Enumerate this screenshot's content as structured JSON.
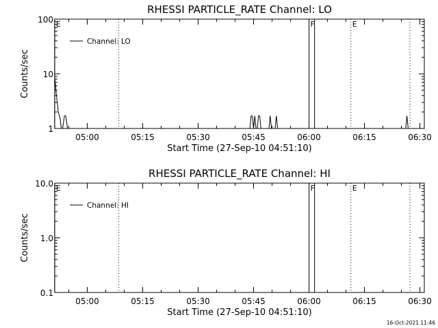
{
  "chart_data": [
    {
      "type": "line",
      "title": "RHESSI PARTICLE_RATE Channel: LO",
      "xlabel": "Start Time (27-Sep-10 04:51:10)",
      "ylabel": "Counts/sec",
      "yscale": "log",
      "ylim": [
        1,
        100
      ],
      "xlim_minutes": [
        291.2,
        391.2
      ],
      "x_ticks": [
        "05:00",
        "05:15",
        "05:30",
        "05:45",
        "06:00",
        "06:15",
        "06:30"
      ],
      "y_ticks": [
        "1",
        "10",
        "100"
      ],
      "legend": {
        "position": "top-left",
        "entries": [
          "Channel: LO"
        ]
      },
      "series": [
        {
          "name": "Channel: LO",
          "x": [
            "04:51:10",
            "04:51:40",
            "04:52:10",
            "04:52:40",
            "04:53:00",
            "04:53:20",
            "04:53:50",
            "04:54:10",
            "04:54:40",
            "04:55:00",
            "04:55:20",
            "04:55:40",
            "05:44:00",
            "05:44:20",
            "05:44:40",
            "05:45:00",
            "05:45:20",
            "05:45:40",
            "05:46:00",
            "05:46:20",
            "05:46:40",
            "05:47:00",
            "05:47:20",
            "05:49:10",
            "05:49:30",
            "05:49:50",
            "05:50:50",
            "05:51:10",
            "05:51:30",
            "06:26:10",
            "06:26:30",
            "06:26:50"
          ],
          "y": [
            9,
            4,
            2,
            1.5,
            1,
            1,
            1.7,
            1.7,
            1,
            1,
            1,
            1,
            1,
            1.7,
            1.7,
            1,
            1.7,
            1,
            1,
            1.7,
            1.7,
            1,
            1,
            1,
            1.7,
            1,
            1,
            1.7,
            1,
            1,
            1.7,
            1
          ]
        }
      ],
      "markers": [
        {
          "label": "E",
          "time": "04:51:10",
          "style": "solid"
        },
        {
          "label": "",
          "time": "05:08:30",
          "style": "dotted"
        },
        {
          "label": "F",
          "time": "06:00:00",
          "style": "solid"
        },
        {
          "label": "",
          "time": "06:01:30",
          "style": "solid"
        },
        {
          "label": "E",
          "time": "06:11:20",
          "style": "dotted"
        },
        {
          "label": "",
          "time": "06:27:20",
          "style": "dotted"
        }
      ]
    },
    {
      "type": "line",
      "title": "RHESSI PARTICLE_RATE Channel: HI",
      "xlabel": "Start Time (27-Sep-10 04:51:10)",
      "ylabel": "Counts/sec",
      "yscale": "log",
      "ylim": [
        0.1,
        10
      ],
      "xlim_minutes": [
        291.2,
        391.2
      ],
      "x_ticks": [
        "05:00",
        "05:15",
        "05:30",
        "05:45",
        "06:00",
        "06:15",
        "06:30"
      ],
      "y_ticks": [
        "0.1",
        "1.0",
        "10.0"
      ],
      "legend": {
        "position": "top-left",
        "entries": [
          "Channel: HI"
        ]
      },
      "series": [
        {
          "name": "Channel: HI",
          "x": [],
          "y": []
        }
      ],
      "markers": [
        {
          "label": "E",
          "time": "04:51:10",
          "style": "solid"
        },
        {
          "label": "",
          "time": "05:08:30",
          "style": "dotted"
        },
        {
          "label": "F",
          "time": "06:00:00",
          "style": "solid"
        },
        {
          "label": "",
          "time": "06:01:30",
          "style": "solid"
        },
        {
          "label": "E",
          "time": "06:11:20",
          "style": "dotted"
        },
        {
          "label": "",
          "time": "06:27:20",
          "style": "dotted"
        }
      ]
    }
  ],
  "footer": {
    "timestamp": "16-Oct-2021 11:46"
  }
}
